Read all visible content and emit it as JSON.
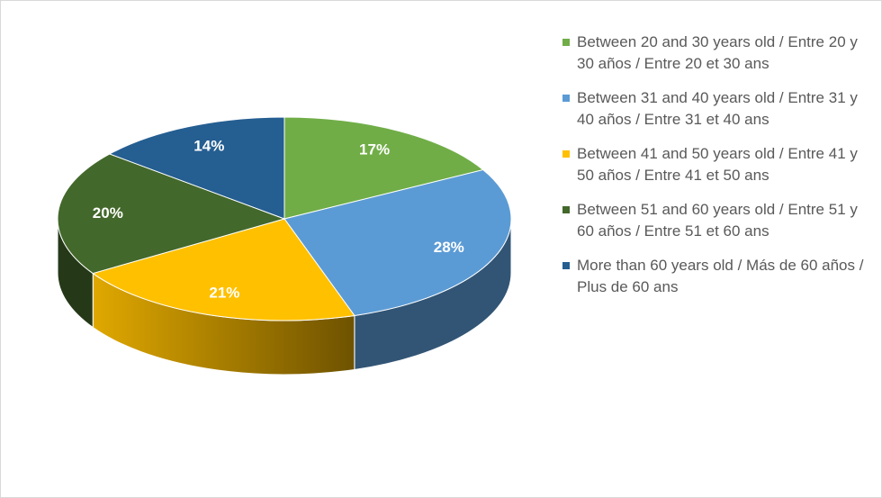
{
  "chart_data": {
    "type": "pie",
    "categories": [
      "Between 20 and 30 years old / Entre 20 y 30 años / Entre 20 et 30 ans",
      "Between 31 and 40 years old / Entre 31 y 40 años / Entre 31 et 40 ans",
      "Between 41 and 50 years old / Entre 41 y 50 años / Entre 41 et 50 ans",
      "Between 51 and 60 years old / Entre 51 y 60 años / Entre 51 et 60 ans",
      "More than 60 years old / Más de 60 años / Plus de 60 ans"
    ],
    "values": [
      17,
      28,
      21,
      20,
      14
    ],
    "value_labels": [
      "17%",
      "28%",
      "21%",
      "20%",
      "14%"
    ],
    "colors": [
      "#70ad47",
      "#5b9bd5",
      "#ffc000",
      "#43682b",
      "#255e91"
    ],
    "legend": "right"
  }
}
